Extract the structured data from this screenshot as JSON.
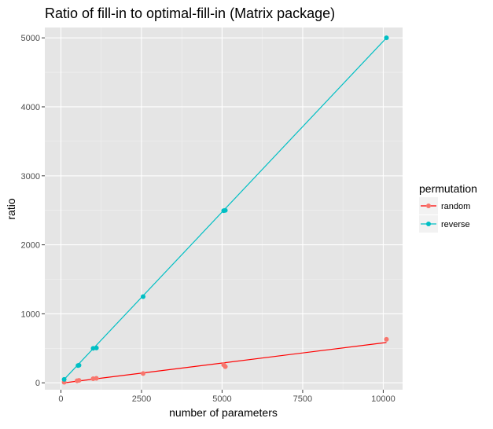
{
  "chart_data": {
    "type": "scatter",
    "title": "Ratio of fill-in to optimal-fill-in (Matrix package)",
    "xlabel": "number of parameters",
    "ylabel": "ratio",
    "xlim": [
      -500,
      10600
    ],
    "ylim": [
      -100,
      5150
    ],
    "x_ticks": [
      0,
      2500,
      5000,
      7500,
      10000
    ],
    "x_tick_labels": [
      "0",
      "2500",
      "5000",
      "7500",
      "10000"
    ],
    "y_ticks": [
      0,
      1000,
      2000,
      3000,
      4000,
      5000
    ],
    "y_tick_labels": [
      "0",
      "1000",
      "2000",
      "3000",
      "4000",
      "5000"
    ],
    "grid": true,
    "background": "#e5e5e5",
    "legend": {
      "title": "permutation",
      "placement": "right"
    },
    "series": [
      {
        "name": "random",
        "color": "#f8766d",
        "line_color": "#ff0000",
        "points": [
          {
            "x": 100,
            "y": 8
          },
          {
            "x": 500,
            "y": 30
          },
          {
            "x": 560,
            "y": 35
          },
          {
            "x": 1000,
            "y": 60
          },
          {
            "x": 1100,
            "y": 65
          },
          {
            "x": 2550,
            "y": 135
          },
          {
            "x": 5050,
            "y": 260
          },
          {
            "x": 5100,
            "y": 235
          },
          {
            "x": 10100,
            "y": 630
          }
        ],
        "fit": [
          {
            "x": 100,
            "y": 0
          },
          {
            "x": 10100,
            "y": 585
          }
        ]
      },
      {
        "name": "reverse",
        "color": "#00bfc4",
        "line_color": "#00bfc4",
        "points": [
          {
            "x": 100,
            "y": 50
          },
          {
            "x": 530,
            "y": 250
          },
          {
            "x": 560,
            "y": 255
          },
          {
            "x": 1000,
            "y": 500
          },
          {
            "x": 1100,
            "y": 505
          },
          {
            "x": 2550,
            "y": 1250
          },
          {
            "x": 5050,
            "y": 2495
          },
          {
            "x": 5100,
            "y": 2500
          },
          {
            "x": 10100,
            "y": 5000
          }
        ],
        "fit": [
          {
            "x": 100,
            "y": 50
          },
          {
            "x": 10100,
            "y": 5000
          }
        ]
      }
    ]
  }
}
